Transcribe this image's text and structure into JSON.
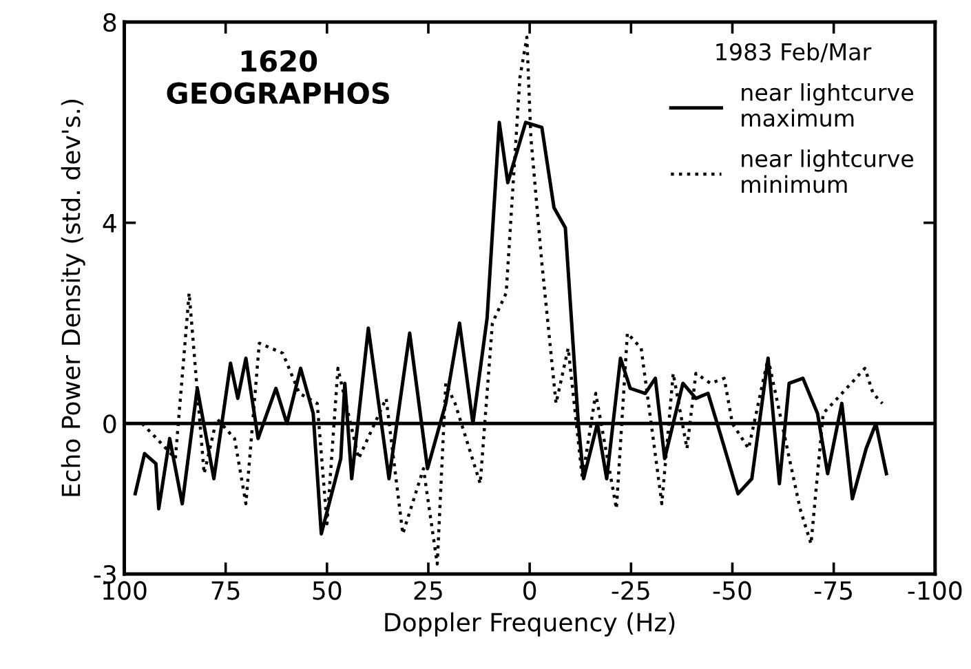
{
  "chart_data": {
    "type": "line",
    "xlabel": "Doppler Frequency (Hz)",
    "ylabel": "Echo Power Density (std. dev's.)",
    "legend_title": "1983 Feb/Mar",
    "legend": "top right",
    "grid": false,
    "marker": "none",
    "annotations": [
      "1620\nGEOGRAPHOS"
    ],
    "xlim": [
      100,
      -100
    ],
    "xticks": [
      100,
      75,
      50,
      25,
      0,
      -25,
      -50,
      -75,
      -100
    ],
    "ylim": [
      -3,
      8
    ],
    "yticks": [
      -3,
      0,
      4,
      8
    ],
    "ref_lines": [
      {
        "axis": "y",
        "value": 0,
        "color": "#000000",
        "line_style": "solid"
      }
    ],
    "series": [
      {
        "name": "near lightcurve\nmaximum",
        "color": "#000000",
        "line_style": "solid",
        "x": [
          97.3,
          95,
          92.2,
          91.5,
          88.8,
          85.7,
          82,
          77.9,
          73.8,
          72,
          70,
          67,
          62.6,
          59.9,
          56.5,
          53.4,
          51.4,
          46.6,
          45.6,
          43.9,
          39.8,
          34.7,
          29.6,
          25.2,
          20.7,
          17.3,
          14,
          10.5,
          7.5,
          5.4,
          1,
          -3,
          -6,
          -8.8,
          -12,
          -13.3,
          -16.7,
          -19,
          -22.4,
          -24.8,
          -28.5,
          -31,
          -33.3,
          -37.8,
          -41,
          -44,
          -47,
          -51.4,
          -54.8,
          -58.8,
          -61.6,
          -64,
          -67.4,
          -71,
          -73.5,
          -77,
          -79.6,
          -83,
          -85.4,
          -88
        ],
        "values": [
          -1.4,
          -0.6,
          -0.8,
          -1.7,
          -0.3,
          -1.6,
          0.7,
          -1.1,
          1.2,
          0.5,
          1.3,
          -0.3,
          0.7,
          0.0,
          1.1,
          0.2,
          -2.2,
          -0.7,
          0.8,
          -1.1,
          1.9,
          -1.1,
          1.8,
          -0.9,
          0.4,
          2.0,
          0.0,
          2.1,
          6.0,
          4.8,
          6.0,
          5.9,
          4.3,
          3.9,
          0.0,
          -1.1,
          0.0,
          -1.1,
          1.3,
          0.7,
          0.6,
          0.9,
          -0.7,
          0.8,
          0.5,
          0.6,
          -0.2,
          -1.4,
          -1.1,
          1.3,
          -1.2,
          0.8,
          0.9,
          0.2,
          -1.0,
          0.4,
          -1.5,
          -0.5,
          0.0,
          -1.0
        ]
      },
      {
        "name": "near lightcurve\nminimum",
        "color": "#000000",
        "line_style": "dotted",
        "x": [
          95.6,
          92,
          87.4,
          84,
          80.3,
          77.2,
          72.8,
          70,
          66.7,
          60.9,
          56.8,
          52.4,
          50,
          47.3,
          42.2,
          35.4,
          31.3,
          26.2,
          22.8,
          20.7,
          18.4,
          12.2,
          9.2,
          5.8,
          2.4,
          0.7,
          -0.3,
          -3,
          -6.5,
          -9.5,
          -13,
          -16.3,
          -21.4,
          -24.1,
          -27.5,
          -32.6,
          -35.4,
          -38.8,
          -41,
          -44.6,
          -48,
          -50,
          -54,
          -58.8,
          -66.7,
          -69.4,
          -72.4,
          -75.9,
          -82.7,
          -84.7,
          -87
        ],
        "values": [
          0.0,
          -0.3,
          -0.7,
          2.6,
          -1.0,
          0.1,
          -0.3,
          -1.6,
          1.6,
          1.4,
          0.6,
          0.4,
          -2.0,
          1.1,
          -0.7,
          0.5,
          -2.2,
          -0.9,
          -2.8,
          0.8,
          0.4,
          -1.2,
          2.0,
          2.6,
          6.9,
          7.7,
          5.7,
          3.2,
          0.4,
          1.5,
          -1.1,
          0.6,
          -1.7,
          1.8,
          1.5,
          -1.6,
          1.0,
          -0.5,
          1.0,
          0.8,
          0.9,
          0.0,
          -0.5,
          1.3,
          -1.7,
          -2.4,
          0.2,
          0.5,
          1.1,
          0.6,
          0.4
        ]
      }
    ]
  }
}
